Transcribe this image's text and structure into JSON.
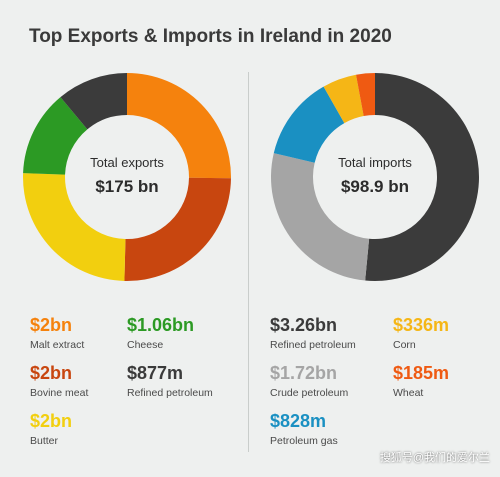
{
  "title": "Top Exports & Imports in Ireland in 2020",
  "watermark": "搜狐号@我们的爱尔兰",
  "chart_data": [
    {
      "type": "pie",
      "center_label": "Total exports",
      "center_value": "$175 bn",
      "slices": [
        {
          "label": "Malt extract",
          "value": 2,
          "display": "$2bn",
          "color": "#f5820d"
        },
        {
          "label": "Bovine meat",
          "value": 2,
          "display": "$2bn",
          "color": "#c8460f"
        },
        {
          "label": "Butter",
          "value": 2,
          "display": "$2bn",
          "color": "#f2cf0f"
        },
        {
          "label": "Cheese",
          "value": 1.06,
          "display": "$1.06bn",
          "color": "#2c9a24"
        },
        {
          "label": "Refined petroleum",
          "value": 0.877,
          "display": "$877m",
          "color": "#3b3b3b"
        }
      ]
    },
    {
      "type": "pie",
      "center_label": "Total imports",
      "center_value": "$98.9 bn",
      "slices": [
        {
          "label": "Refined petroleum",
          "value": 3.26,
          "display": "$3.26bn",
          "color": "#3b3b3b"
        },
        {
          "label": "Crude petroleum",
          "value": 1.72,
          "display": "$1.72bn",
          "color": "#a5a5a5"
        },
        {
          "label": "Petroleum gas",
          "value": 0.828,
          "display": "$828m",
          "color": "#1a90c2"
        },
        {
          "label": "Corn",
          "value": 0.336,
          "display": "$336m",
          "color": "#f5b616"
        },
        {
          "label": "Wheat",
          "value": 0.185,
          "display": "$185m",
          "color": "#ef5a12"
        }
      ]
    }
  ]
}
